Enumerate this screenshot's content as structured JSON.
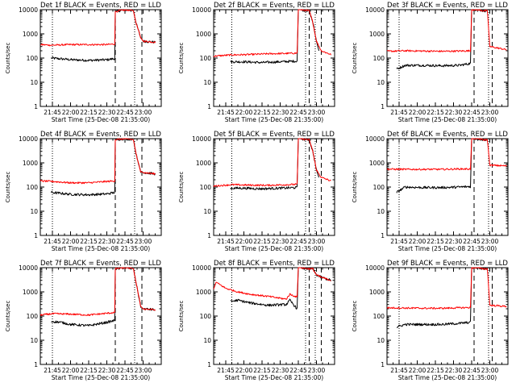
{
  "figure": {
    "start_time_label": "Start Time (25-Dec-08 21:35:00)",
    "ylabel": "Counts/sec",
    "x_tick_labels": [
      "21:45",
      "22:00",
      "22:15",
      "22:30",
      "22:45",
      "23:00"
    ],
    "y_tick_labels": [
      "1",
      "10",
      "100",
      "1000",
      "10000"
    ],
    "colors": {
      "events": "#000000",
      "lld": "#ff0000",
      "axes": "#000000"
    }
  },
  "chart_data": [
    {
      "type": "line",
      "title": "Det 1f BLACK = Events, RED = LLD",
      "xlabel": "Start Time (25-Dec-08 21:35:00)",
      "ylabel": "Counts/sec",
      "yscale": "log",
      "ylim": [
        1,
        10000
      ],
      "xlim": [
        "21:35",
        "23:15"
      ],
      "dotted_lines": [
        "21:45",
        "22:53"
      ],
      "dashed_lines": [
        "22:37",
        "22:59"
      ],
      "x_tick_labels": [
        "21:45",
        "22:00",
        "22:15",
        "22:30",
        "22:45",
        "23:00"
      ],
      "series": [
        {
          "color": "#000000",
          "x": [
            "21:44",
            "22:01",
            "22:16",
            "22:30",
            "22:36:30",
            "22:37",
            "22:40",
            "22:44",
            "22:50",
            "22:52",
            "22:54",
            "22:58",
            "23:00",
            "23:10"
          ],
          "values": [
            100,
            85,
            80,
            85,
            95,
            8000,
            9000,
            9500,
            9800,
            9000,
            3000,
            700,
            500,
            450
          ]
        },
        {
          "color": "#ff0000",
          "x": [
            "21:35",
            "21:45",
            "22:00",
            "22:15",
            "22:30",
            "22:36:30",
            "22:37",
            "22:40",
            "22:44",
            "22:50",
            "22:52",
            "22:54",
            "22:58",
            "23:00",
            "23:10"
          ],
          "values": [
            360,
            340,
            360,
            360,
            360,
            380,
            8000,
            9000,
            9500,
            9800,
            9000,
            3000,
            700,
            500,
            450
          ]
        }
      ]
    },
    {
      "type": "line",
      "title": "Det 2f BLACK = Events, RED = LLD",
      "xlabel": "Start Time (25-Dec-08 21:35:00)",
      "ylabel": "Counts/sec",
      "yscale": "log",
      "ylim": [
        1,
        10000
      ],
      "xlim": [
        "21:35",
        "23:15"
      ],
      "dotted_lines": [
        "21:50",
        "22:51",
        "22:59"
      ],
      "dashed_lines": [
        "22:54",
        "23:04"
      ],
      "x_tick_labels": [
        "21:45",
        "22:00",
        "22:15",
        "22:30",
        "22:45",
        "23:00"
      ],
      "series": [
        {
          "color": "#000000",
          "x": [
            "21:49",
            "22:00",
            "22:15",
            "22:30",
            "22:44",
            "22:45",
            "22:47",
            "22:50",
            "22:54",
            "22:57",
            "23:00",
            "23:02"
          ],
          "values": [
            70,
            70,
            65,
            70,
            75,
            10000,
            10000,
            9500,
            9000,
            3000,
            500,
            200
          ]
        },
        {
          "color": "#ff0000",
          "x": [
            "21:35",
            "21:50",
            "22:05",
            "22:20",
            "22:35",
            "22:44",
            "22:45",
            "22:47",
            "22:50",
            "22:54",
            "22:57",
            "23:00",
            "23:04",
            "23:12"
          ],
          "values": [
            120,
            135,
            140,
            150,
            155,
            160,
            10000,
            10000,
            9500,
            9000,
            3000,
            500,
            200,
            140
          ]
        }
      ]
    },
    {
      "type": "line",
      "title": "Det 3f BLACK = Events, RED = LLD",
      "xlabel": "Start Time (25-Dec-08 21:35:00)",
      "ylabel": "Counts/sec",
      "yscale": "log",
      "ylim": [
        1,
        10000
      ],
      "xlim": [
        "21:35",
        "23:15"
      ],
      "dotted_lines": [
        "21:45",
        "22:59"
      ],
      "dashed_lines": [
        "22:47",
        "23:02"
      ],
      "x_tick_labels": [
        "21:45",
        "22:00",
        "22:15",
        "22:30",
        "22:45",
        "23:00"
      ],
      "series": [
        {
          "color": "#000000",
          "x": [
            "21:43",
            "21:50",
            "22:05",
            "22:20",
            "22:35",
            "22:44",
            "22:45",
            "22:50",
            "22:55",
            "22:58"
          ],
          "values": [
            35,
            50,
            50,
            48,
            50,
            60,
            10000,
            10000,
            9000,
            9000
          ]
        },
        {
          "color": "#ff0000",
          "x": [
            "21:35",
            "21:50",
            "22:05",
            "22:20",
            "22:35",
            "22:44",
            "22:45",
            "22:50",
            "22:55",
            "22:58",
            "23:00",
            "23:14"
          ],
          "values": [
            190,
            200,
            195,
            190,
            195,
            200,
            10000,
            10000,
            9000,
            9000,
            300,
            220
          ]
        }
      ]
    },
    {
      "type": "line",
      "title": "Det 4f BLACK = Events, RED = LLD",
      "xlabel": "Start Time (25-Dec-08 21:35:00)",
      "ylabel": "Counts/sec",
      "yscale": "log",
      "ylim": [
        1,
        10000
      ],
      "xlim": [
        "21:35",
        "23:15"
      ],
      "dotted_lines": [
        "21:45",
        "22:53"
      ],
      "dashed_lines": [
        "22:37",
        "22:59"
      ],
      "x_tick_labels": [
        "21:45",
        "22:00",
        "22:15",
        "22:30",
        "22:45",
        "23:00"
      ],
      "series": [
        {
          "color": "#000000",
          "x": [
            "21:44",
            "21:52",
            "22:00",
            "22:15",
            "22:30",
            "22:36:30",
            "22:37",
            "22:40",
            "22:44",
            "22:50",
            "22:52",
            "22:55",
            "22:58",
            "23:00",
            "23:10"
          ],
          "values": [
            60,
            55,
            50,
            48,
            52,
            60,
            9000,
            9500,
            9800,
            9500,
            9000,
            1500,
            450,
            400,
            350
          ]
        },
        {
          "color": "#ff0000",
          "x": [
            "21:35",
            "21:45",
            "22:00",
            "22:15",
            "22:30",
            "22:36:30",
            "22:37",
            "22:40",
            "22:44",
            "22:50",
            "22:52",
            "22:55",
            "22:58",
            "23:00",
            "23:10"
          ],
          "values": [
            180,
            170,
            150,
            150,
            170,
            180,
            9000,
            9500,
            9800,
            9500,
            9000,
            1500,
            450,
            400,
            350
          ]
        }
      ]
    },
    {
      "type": "line",
      "title": "Det 5f BLACK = Events, RED = LLD",
      "xlabel": "Start Time (25-Dec-08 21:35:00)",
      "ylabel": "Counts/sec",
      "yscale": "log",
      "ylim": [
        1,
        10000
      ],
      "xlim": [
        "21:35",
        "23:15"
      ],
      "dotted_lines": [
        "21:50",
        "22:51",
        "22:59"
      ],
      "dashed_lines": [
        "22:54",
        "23:04"
      ],
      "x_tick_labels": [
        "21:45",
        "22:00",
        "22:15",
        "22:30",
        "22:45",
        "23:00"
      ],
      "series": [
        {
          "color": "#000000",
          "x": [
            "21:49",
            "22:00",
            "22:15",
            "22:30",
            "22:44",
            "22:45",
            "22:47",
            "22:50",
            "22:54",
            "22:57",
            "23:00",
            "23:02"
          ],
          "values": [
            90,
            90,
            85,
            90,
            95,
            10000,
            10000,
            9500,
            9000,
            3000,
            500,
            250
          ]
        },
        {
          "color": "#ff0000",
          "x": [
            "21:35",
            "21:50",
            "22:05",
            "22:20",
            "22:35",
            "22:44",
            "22:45",
            "22:47",
            "22:50",
            "22:54",
            "22:57",
            "23:00",
            "23:04",
            "23:12"
          ],
          "values": [
            110,
            125,
            120,
            118,
            125,
            130,
            10000,
            10000,
            9500,
            9000,
            3000,
            500,
            250,
            180
          ]
        }
      ]
    },
    {
      "type": "line",
      "title": "Det 6f BLACK = Events, RED = LLD",
      "xlabel": "Start Time (25-Dec-08 21:35:00)",
      "ylabel": "Counts/sec",
      "yscale": "log",
      "ylim": [
        1,
        10000
      ],
      "xlim": [
        "21:35",
        "23:15"
      ],
      "dotted_lines": [
        "21:45",
        "22:59"
      ],
      "dashed_lines": [
        "22:47",
        "23:02"
      ],
      "x_tick_labels": [
        "21:45",
        "22:00",
        "22:15",
        "22:30",
        "22:45",
        "23:00"
      ],
      "series": [
        {
          "color": "#000000",
          "x": [
            "21:43",
            "21:50",
            "22:05",
            "22:20",
            "22:35",
            "22:44",
            "22:45",
            "22:50",
            "22:55",
            "22:58"
          ],
          "values": [
            60,
            100,
            95,
            95,
            100,
            105,
            10000,
            10000,
            9000,
            9000
          ]
        },
        {
          "color": "#ff0000",
          "x": [
            "21:35",
            "21:50",
            "22:05",
            "22:20",
            "22:35",
            "22:44",
            "22:45",
            "22:50",
            "22:55",
            "22:58",
            "23:00",
            "23:14"
          ],
          "values": [
            550,
            540,
            540,
            540,
            560,
            560,
            10000,
            10000,
            9000,
            9000,
            800,
            750
          ]
        }
      ]
    },
    {
      "type": "line",
      "title": "Det 7f BLACK = Events, RED = LLD",
      "xlabel": "Start Time (25-Dec-08 21:35:00)",
      "ylabel": "Counts/sec",
      "yscale": "log",
      "ylim": [
        1,
        10000
      ],
      "xlim": [
        "21:35",
        "23:15"
      ],
      "dotted_lines": [
        "21:45",
        "22:53"
      ],
      "dashed_lines": [
        "22:37",
        "22:59"
      ],
      "x_tick_labels": [
        "21:45",
        "22:00",
        "22:15",
        "22:30",
        "22:45",
        "23:00"
      ],
      "series": [
        {
          "color": "#000000",
          "x": [
            "21:44",
            "21:52",
            "22:00",
            "22:15",
            "22:30",
            "22:36:30",
            "22:37",
            "22:40",
            "22:44",
            "22:50",
            "22:52",
            "22:55",
            "22:58",
            "23:00",
            "23:10"
          ],
          "values": [
            60,
            55,
            45,
            40,
            55,
            65,
            9000,
            9500,
            9800,
            9500,
            9000,
            1500,
            250,
            200,
            180
          ]
        },
        {
          "color": "#ff0000",
          "x": [
            "21:35",
            "21:45",
            "22:00",
            "22:15",
            "22:30",
            "22:36:30",
            "22:37",
            "22:40",
            "22:44",
            "22:50",
            "22:52",
            "22:55",
            "22:58",
            "23:00",
            "23:10"
          ],
          "values": [
            110,
            125,
            120,
            110,
            130,
            140,
            9000,
            9500,
            9800,
            9500,
            9000,
            1500,
            250,
            200,
            180
          ]
        }
      ]
    },
    {
      "type": "line",
      "title": "Det 8f BLACK = Events, RED = LLD",
      "xlabel": "Start Time (25-Dec-08 21:35:00)",
      "ylabel": "Counts/sec",
      "yscale": "log",
      "ylim": [
        1,
        10000
      ],
      "xlim": [
        "21:35",
        "23:15"
      ],
      "dotted_lines": [
        "21:50",
        "22:51",
        "22:59"
      ],
      "dashed_lines": [
        "22:54",
        "23:04"
      ],
      "x_tick_labels": [
        "21:45",
        "22:00",
        "22:15",
        "22:30",
        "22:45",
        "23:00"
      ],
      "series": [
        {
          "color": "#000000",
          "x": [
            "21:49",
            "21:55",
            "22:05",
            "22:20",
            "22:35",
            "22:38",
            "22:44",
            "22:45",
            "22:47",
            "22:50",
            "22:54",
            "22:57",
            "23:00",
            "23:04",
            "23:12"
          ],
          "values": [
            400,
            450,
            350,
            280,
            300,
            450,
            200,
            10000,
            10000,
            9500,
            9000,
            9000,
            5000,
            4000,
            3000
          ]
        },
        {
          "color": "#ff0000",
          "x": [
            "21:35",
            "21:37",
            "21:45",
            "21:55",
            "22:05",
            "22:20",
            "22:35",
            "22:38",
            "22:44",
            "22:45",
            "22:47",
            "22:50",
            "22:54",
            "22:57",
            "23:00",
            "23:04",
            "23:12"
          ],
          "values": [
            1300,
            2500,
            1400,
            1000,
            800,
            650,
            500,
            800,
            600,
            10000,
            10000,
            9500,
            9000,
            9000,
            5000,
            4000,
            3000
          ]
        }
      ]
    },
    {
      "type": "line",
      "title": "Det 9f BLACK = Events, RED = LLD",
      "xlabel": "Start Time (25-Dec-08 21:35:00)",
      "ylabel": "Counts/sec",
      "yscale": "log",
      "ylim": [
        1,
        10000
      ],
      "xlim": [
        "21:35",
        "23:15"
      ],
      "dotted_lines": [
        "21:45",
        "22:59"
      ],
      "dashed_lines": [
        "22:47",
        "23:02"
      ],
      "x_tick_labels": [
        "21:45",
        "22:00",
        "22:15",
        "22:30",
        "22:45",
        "23:00"
      ],
      "series": [
        {
          "color": "#000000",
          "x": [
            "21:43",
            "21:50",
            "22:05",
            "22:20",
            "22:35",
            "22:44",
            "22:45",
            "22:50",
            "22:55",
            "22:58"
          ],
          "values": [
            35,
            45,
            45,
            45,
            50,
            55,
            10000,
            10000,
            9000,
            9000
          ]
        },
        {
          "color": "#ff0000",
          "x": [
            "21:35",
            "21:50",
            "22:05",
            "22:20",
            "22:35",
            "22:44",
            "22:45",
            "22:50",
            "22:55",
            "22:58",
            "23:00",
            "23:14"
          ],
          "values": [
            220,
            215,
            210,
            210,
            220,
            225,
            10000,
            10000,
            9000,
            9000,
            280,
            250
          ]
        }
      ]
    }
  ]
}
